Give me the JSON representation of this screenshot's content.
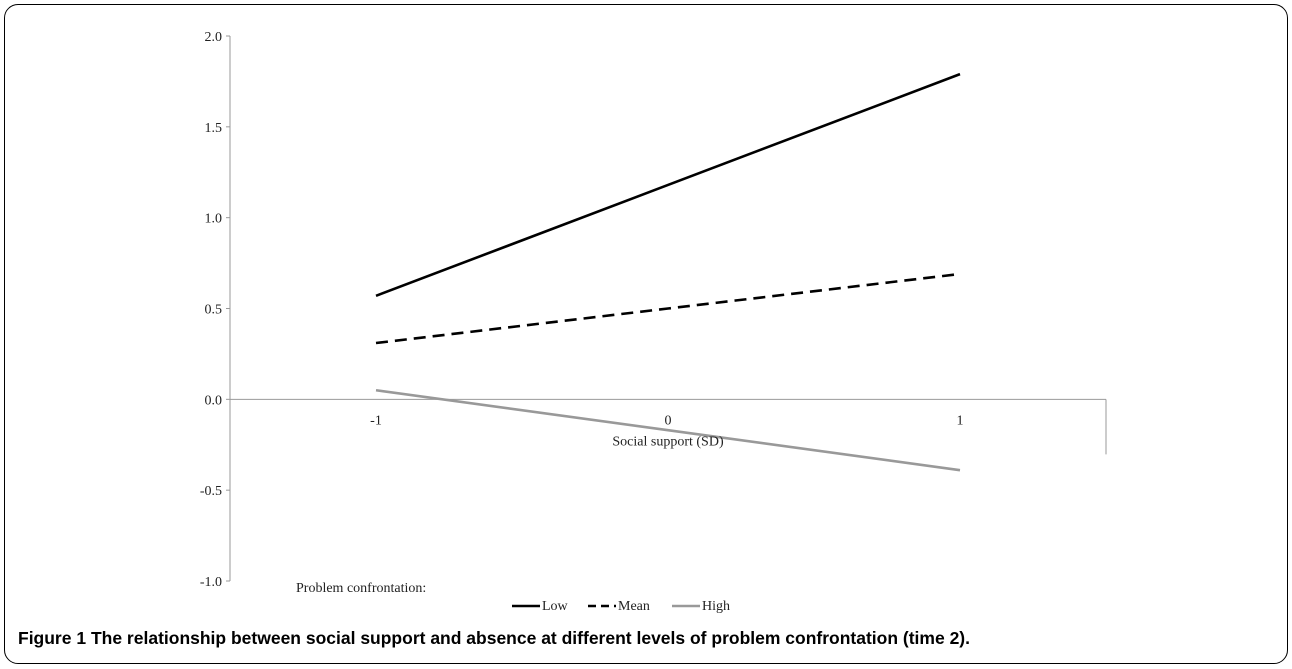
{
  "caption": {
    "figure_label": "Figure 1",
    "text": "The relationship between social support and absence at different levels of problem confrontation (time 2)."
  },
  "chart_data": {
    "type": "line",
    "x": [
      -1,
      0,
      1
    ],
    "x_tick_labels": [
      "-1",
      "0",
      "1"
    ],
    "xlabel": "Social support (SD)",
    "ylabel": "",
    "y_tick_labels": [
      "2.0",
      "1.5",
      "1.0",
      "0.5",
      "0.0",
      "-0.5",
      "-1.0"
    ],
    "y_ticks": [
      2.0,
      1.5,
      1.0,
      0.5,
      0.0,
      -0.5,
      -1.0
    ],
    "ylim": [
      -1.0,
      2.0
    ],
    "xlim": [
      -1.5,
      1.5
    ],
    "legend_title": "Problem confrontation:",
    "legend_position": "bottom",
    "series": [
      {
        "name": "Low",
        "values": [
          0.57,
          1.18,
          1.79
        ],
        "color": "#000000",
        "dash": "solid"
      },
      {
        "name": "Mean",
        "values": [
          0.31,
          0.5,
          0.69
        ],
        "color": "#000000",
        "dash": "dashed"
      },
      {
        "name": "High",
        "values": [
          0.05,
          -0.17,
          -0.39
        ],
        "color": "#999999",
        "dash": "solid"
      }
    ]
  }
}
